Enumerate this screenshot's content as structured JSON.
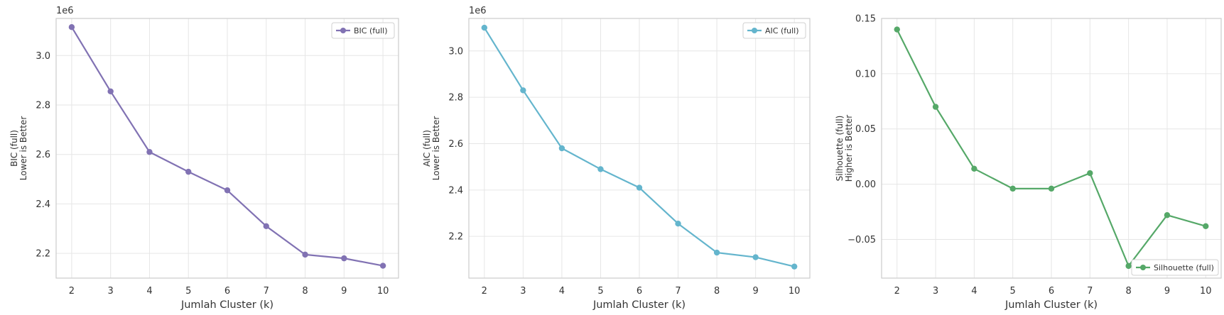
{
  "chart_data": [
    {
      "type": "line",
      "x": [
        2,
        3,
        4,
        5,
        6,
        7,
        8,
        9,
        10
      ],
      "series": [
        {
          "name": "BIC (full)",
          "values": [
            3.115,
            2.855,
            2.61,
            2.53,
            2.455,
            2.31,
            2.195,
            2.18,
            2.15
          ],
          "color": "#8172b3"
        }
      ],
      "scale_note": "1e6",
      "xlabel": "Jumlah Cluster (k)",
      "ylabel_lines": [
        "BIC (full)",
        "Lower is Better"
      ],
      "ylim": [
        2.1,
        3.15
      ],
      "xlim": [
        1.6,
        10.4
      ],
      "yticks": [
        2.2,
        2.4,
        2.6,
        2.8,
        3.0
      ],
      "ytick_labels": [
        "2.2",
        "2.4",
        "2.6",
        "2.8",
        "3.0"
      ],
      "legend_position": "top-right",
      "grid": true
    },
    {
      "type": "line",
      "x": [
        2,
        3,
        4,
        5,
        6,
        7,
        8,
        9,
        10
      ],
      "series": [
        {
          "name": "AIC (full)",
          "values": [
            3.1,
            2.83,
            2.58,
            2.49,
            2.41,
            2.255,
            2.13,
            2.11,
            2.07
          ],
          "color": "#64b5cd"
        }
      ],
      "scale_note": "1e6",
      "xlabel": "Jumlah Cluster (k)",
      "ylabel_lines": [
        "AIC (full)",
        "Lower is Better"
      ],
      "ylim": [
        2.02,
        3.14
      ],
      "xlim": [
        1.6,
        10.4
      ],
      "yticks": [
        2.2,
        2.4,
        2.6,
        2.8,
        3.0
      ],
      "ytick_labels": [
        "2.2",
        "2.4",
        "2.6",
        "2.8",
        "3.0"
      ],
      "legend_position": "top-right",
      "grid": true
    },
    {
      "type": "line",
      "x": [
        2,
        3,
        4,
        5,
        6,
        7,
        8,
        9,
        10
      ],
      "series": [
        {
          "name": "Silhouette (full)",
          "values": [
            0.14,
            0.07,
            0.014,
            -0.004,
            -0.004,
            0.01,
            -0.074,
            -0.028,
            -0.038
          ],
          "color": "#55a868"
        }
      ],
      "scale_note": "",
      "xlabel": "Jumlah Cluster (k)",
      "ylabel_lines": [
        "Silhouette (full)",
        "Higher is Better"
      ],
      "ylim": [
        -0.085,
        0.15
      ],
      "xlim": [
        1.6,
        10.4
      ],
      "yticks": [
        -0.05,
        0.0,
        0.05,
        0.1,
        0.15
      ],
      "ytick_labels": [
        "−0.05",
        "0.00",
        "0.05",
        "0.10",
        "0.15"
      ],
      "legend_position": "lower-right",
      "grid": true
    }
  ]
}
